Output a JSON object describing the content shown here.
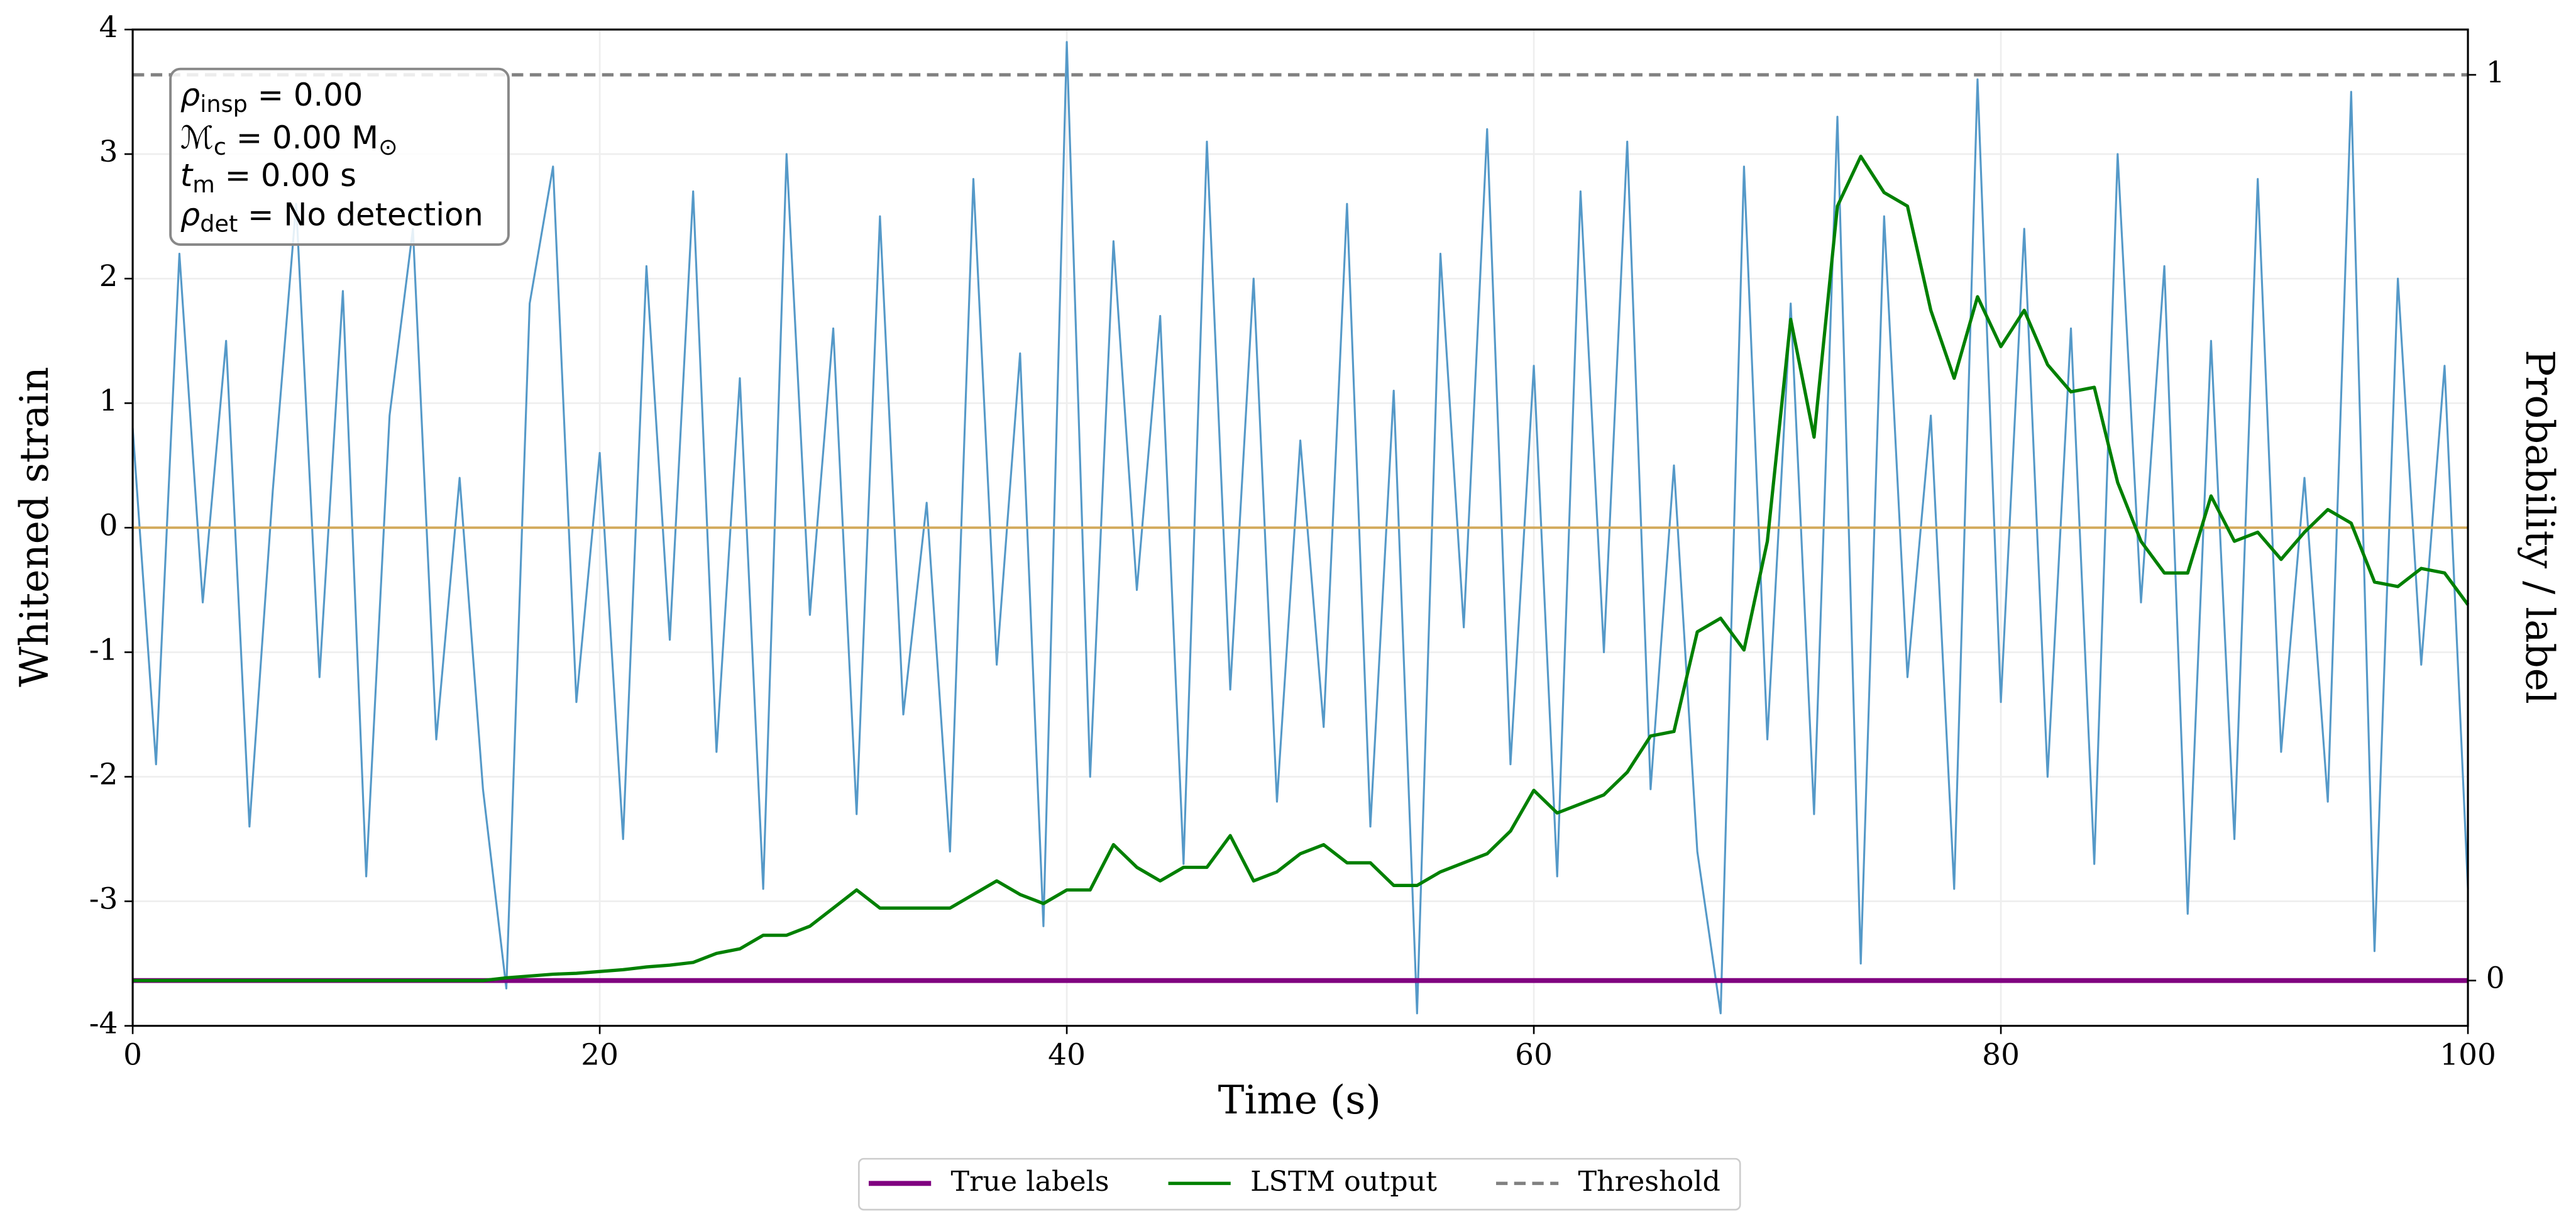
{
  "chart_data": {
    "type": "line",
    "xlabel": "Time (s)",
    "ylabel": "Whitened strain",
    "y2label": "Probability / label",
    "x": [
      0,
      1,
      2,
      3,
      4,
      5,
      6,
      7,
      8,
      9,
      10,
      11,
      12,
      13,
      14,
      15,
      16,
      17,
      18,
      19,
      20,
      21,
      22,
      23,
      24,
      25,
      26,
      27,
      28,
      29,
      30,
      31,
      32,
      33,
      34,
      35,
      36,
      37,
      38,
      39,
      40,
      41,
      42,
      43,
      44,
      45,
      46,
      47,
      48,
      49,
      50,
      51,
      52,
      53,
      54,
      55,
      56,
      57,
      58,
      59,
      60,
      61,
      62,
      63,
      64,
      65,
      66,
      67,
      68,
      69,
      70,
      71,
      72,
      73,
      74,
      75,
      76,
      77,
      78,
      79,
      80,
      81,
      82,
      83,
      84,
      85,
      86,
      87,
      88,
      89,
      90,
      91,
      92,
      93,
      94,
      95,
      96,
      97,
      98,
      99,
      100
    ],
    "xlim": [
      0,
      100
    ],
    "xticks": [
      0,
      20,
      40,
      60,
      80,
      100
    ],
    "ylim": [
      -4,
      4
    ],
    "yticks": [
      -4,
      -3,
      -2,
      -1,
      0,
      1,
      2,
      3,
      4
    ],
    "y2lim": [
      -0.05,
      1.05
    ],
    "y2ticks": [
      0,
      1
    ],
    "grid": true,
    "zero_line": {
      "value": 0,
      "color": "#d2a95a"
    },
    "series": [
      {
        "color": "#5599c8",
        "width": 1.2,
        "values": [
          0.8,
          -1.9,
          2.2,
          -0.6,
          1.5,
          -2.4,
          0.3,
          2.6,
          -1.2,
          1.9,
          -2.8,
          0.9,
          2.4,
          -1.7,
          0.4,
          -2.1,
          -3.7,
          1.8,
          2.9,
          -1.4,
          0.6,
          -2.5,
          2.1,
          -0.9,
          2.7,
          -1.8,
          1.2,
          -2.9,
          3.0,
          -0.7,
          1.6,
          -2.3,
          2.5,
          -1.5,
          0.2,
          -2.6,
          2.8,
          -1.1,
          1.4,
          -3.2,
          3.9,
          -2.0,
          2.3,
          -0.5,
          1.7,
          -2.7,
          3.1,
          -1.3,
          2.0,
          -2.2,
          0.7,
          -1.6,
          2.6,
          -2.4,
          1.1,
          -3.9,
          2.2,
          -0.8,
          3.2,
          -1.9,
          1.3,
          -2.8,
          2.7,
          -1.0,
          3.1,
          -2.1,
          0.5,
          -2.6,
          -3.9,
          2.9,
          -1.7,
          1.8,
          -2.3,
          3.3,
          -3.5,
          2.5,
          -1.2,
          0.9,
          -2.9,
          3.6,
          -1.4,
          2.4,
          -2.0,
          1.6,
          -2.7,
          3.0,
          -0.6,
          2.1,
          -3.1,
          1.5,
          -2.5,
          2.8,
          -1.8,
          0.4,
          -2.2,
          3.5,
          -3.4,
          2.0,
          -1.1,
          1.3,
          -2.9
        ]
      },
      {
        "name": "True labels",
        "color": "#800080",
        "width": 3,
        "axis": "y2",
        "x": [
          0,
          100
        ],
        "values": [
          0,
          0
        ]
      },
      {
        "name": "LSTM output",
        "color": "#008000",
        "width": 2,
        "axis": "y2",
        "values": [
          0,
          0,
          0,
          0,
          0,
          0,
          0,
          0,
          0,
          0,
          0,
          0,
          0,
          0,
          0,
          0,
          0.003,
          0.005,
          0.007,
          0.008,
          0.01,
          0.012,
          0.015,
          0.017,
          0.02,
          0.03,
          0.035,
          0.05,
          0.05,
          0.06,
          0.08,
          0.1,
          0.08,
          0.08,
          0.08,
          0.08,
          0.095,
          0.11,
          0.095,
          0.085,
          0.1,
          0.1,
          0.15,
          0.125,
          0.11,
          0.125,
          0.125,
          0.16,
          0.11,
          0.12,
          0.14,
          0.15,
          0.13,
          0.13,
          0.105,
          0.105,
          0.12,
          0.13,
          0.14,
          0.165,
          0.21,
          0.185,
          0.195,
          0.205,
          0.23,
          0.27,
          0.275,
          0.385,
          0.4,
          0.365,
          0.485,
          0.73,
          0.6,
          0.855,
          0.91,
          0.87,
          0.855,
          0.74,
          0.665,
          0.755,
          0.7,
          0.74,
          0.68,
          0.65,
          0.655,
          0.55,
          0.485,
          0.45,
          0.45,
          0.535,
          0.485,
          0.495,
          0.465,
          0.495,
          0.52,
          0.505,
          0.44,
          0.435,
          0.455,
          0.45,
          0.415
        ]
      },
      {
        "name": "Threshold",
        "color": "#808080",
        "width": 2,
        "dash": true,
        "axis": "y2",
        "x": [
          0,
          100
        ],
        "values": [
          1,
          1
        ]
      }
    ],
    "annotation": [
      [
        {
          "text": "ρ"
        },
        {
          "text": "insp",
          "sub": true
        },
        {
          "text": " = 0.00"
        }
      ],
      [
        {
          "text": "ℳ"
        },
        {
          "text": "c",
          "sub": true
        },
        {
          "text": " = 0.00 M"
        },
        {
          "text": "⊙",
          "sub": true
        }
      ],
      [
        {
          "text": "t"
        },
        {
          "text": "m",
          "sub": true
        },
        {
          "text": " = 0.00 s"
        }
      ],
      [
        {
          "text": "ρ"
        },
        {
          "text": "det",
          "sub": true
        },
        {
          "text": " = No detection"
        }
      ]
    ]
  }
}
